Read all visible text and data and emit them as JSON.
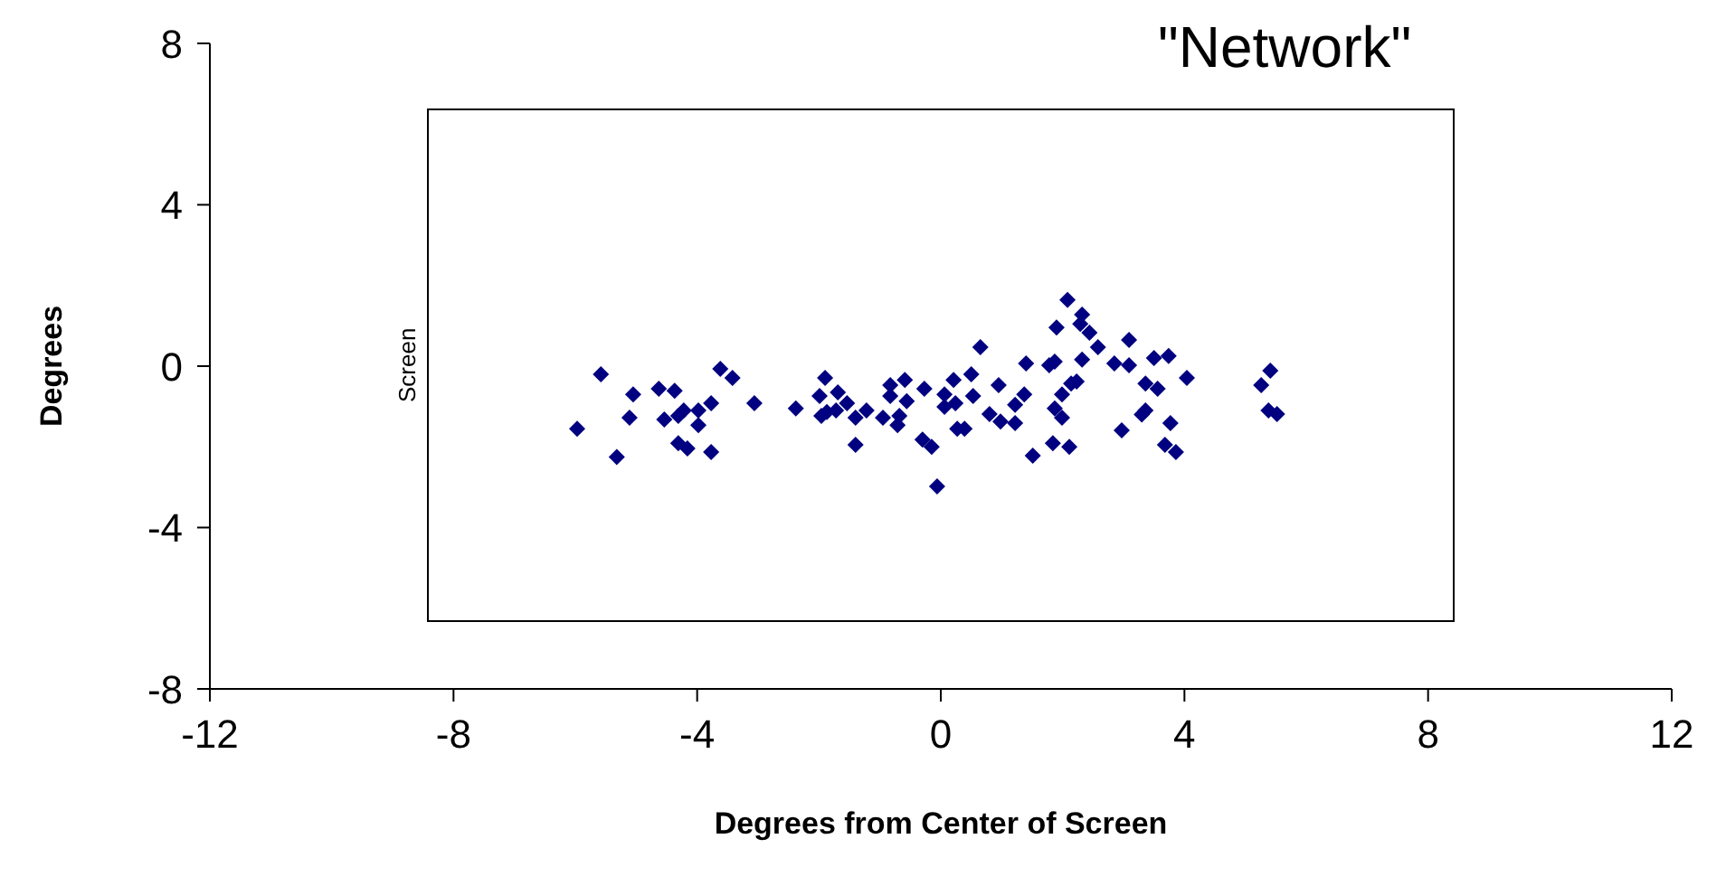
{
  "chart_data": {
    "type": "scatter",
    "title": "\"Network\"",
    "xlabel": "Degrees from Center of Screen",
    "ylabel": "Degrees",
    "annotations": [
      "Screen"
    ],
    "xlim": [
      -12,
      12
    ],
    "xticks": [
      -12,
      -8,
      -4,
      0,
      4,
      8,
      12
    ],
    "ylim": [
      -8,
      8
    ],
    "yticks": [
      -8,
      -4,
      0,
      4,
      8
    ],
    "grid": false,
    "marker": "diamond",
    "series": [
      {
        "color": "#000080",
        "x": [
          -5.97,
          -5.58,
          -5.32,
          -5.05,
          -5.11,
          -4.63,
          -4.37,
          -4.54,
          -4.31,
          -4.22,
          -3.98,
          -3.98,
          -3.77,
          -4.31,
          -4.16,
          -3.77,
          -3.62,
          -3.42,
          -3.06,
          -2.38,
          -1.9,
          -1.99,
          -1.69,
          -1.96,
          -1.87,
          -1.72,
          -1.54,
          -1.4,
          -1.4,
          -1.22,
          -0.95,
          -0.83,
          -0.83,
          -0.59,
          -0.56,
          -0.68,
          -0.71,
          -0.27,
          -0.3,
          -0.15,
          -0.06,
          0.06,
          0.06,
          0.21,
          0.24,
          0.5,
          0.53,
          0.65,
          0.95,
          0.8,
          0.98,
          1.22,
          1.22,
          1.37,
          1.4,
          1.78,
          1.87,
          1.9,
          2.08,
          2.32,
          2.29,
          2.44,
          2.58,
          2.32,
          2.14,
          2.23,
          1.99,
          1.87,
          1.99,
          1.84,
          2.11,
          1.51,
          0.39,
          0.27,
          2.85,
          3.09,
          3.09,
          3.5,
          3.74,
          4.04,
          3.36,
          3.56,
          3.36,
          3.3,
          3.77,
          2.97,
          3.68,
          3.86,
          5.26,
          5.41,
          5.38,
          5.52
        ],
        "values": [
          -1.55,
          -0.2,
          -2.25,
          -0.7,
          -1.28,
          -0.56,
          -0.61,
          -1.32,
          -1.23,
          -1.1,
          -1.1,
          -1.46,
          -0.92,
          -1.91,
          -2.04,
          -2.13,
          -0.07,
          -0.29,
          -0.92,
          -1.05,
          -0.29,
          -0.74,
          -0.65,
          -1.23,
          -1.14,
          -1.1,
          -0.92,
          -1.28,
          -1.95,
          -1.1,
          -1.28,
          -0.47,
          -0.74,
          -0.34,
          -0.87,
          -1.23,
          -1.46,
          -0.56,
          -1.82,
          -2.0,
          -2.98,
          -0.7,
          -1.01,
          -0.34,
          -0.92,
          -0.2,
          -0.74,
          0.47,
          -0.47,
          -1.19,
          -1.37,
          -0.96,
          -1.41,
          -0.7,
          0.07,
          0.02,
          0.11,
          0.96,
          1.64,
          1.28,
          1.05,
          0.83,
          0.47,
          0.16,
          -0.43,
          -0.38,
          -0.7,
          -1.05,
          -1.28,
          -1.91,
          -2.0,
          -2.22,
          -1.55,
          -1.55,
          0.07,
          0.65,
          0.02,
          0.2,
          0.25,
          -0.29,
          -0.43,
          -0.56,
          -1.1,
          -1.2,
          -1.41,
          -1.59,
          -1.95,
          -2.13,
          -0.47,
          -0.11,
          -1.1,
          -1.19
        ]
      }
    ]
  }
}
